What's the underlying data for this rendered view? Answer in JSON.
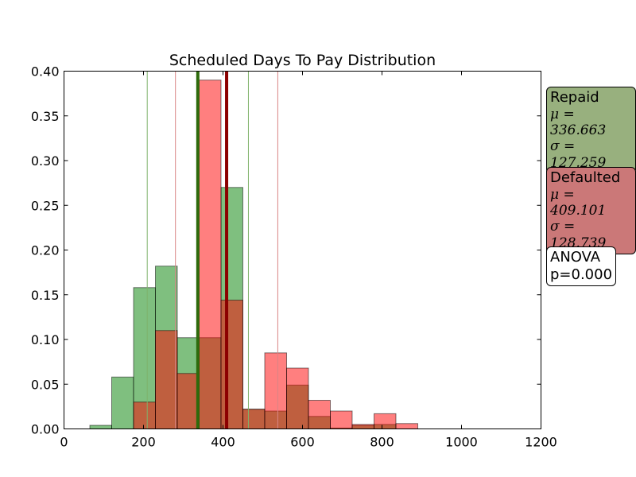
{
  "chart_data": {
    "type": "histogram",
    "title": "Scheduled Days To Pay Distribution",
    "xlim": [
      0,
      1200
    ],
    "ylim": [
      0,
      0.4
    ],
    "x_ticks": [
      0,
      200,
      400,
      600,
      800,
      1000,
      1200
    ],
    "y_ticks": [
      0.0,
      0.05,
      0.1,
      0.15,
      0.2,
      0.25,
      0.3,
      0.35,
      0.4
    ],
    "x_tick_labels": [
      "0",
      "200",
      "400",
      "600",
      "800",
      "1000",
      "1200"
    ],
    "y_tick_labels": [
      "0.00",
      "0.05",
      "0.10",
      "0.15",
      "0.20",
      "0.25",
      "0.30",
      "0.35",
      "0.40"
    ],
    "series": [
      {
        "name": "Repaid",
        "color": "#008000",
        "bins": [
          {
            "x0": 65,
            "x1": 120,
            "y": 0.004
          },
          {
            "x0": 120,
            "x1": 175,
            "y": 0.058
          },
          {
            "x0": 175,
            "x1": 230,
            "y": 0.158
          },
          {
            "x0": 230,
            "x1": 285,
            "y": 0.182
          },
          {
            "x0": 285,
            "x1": 340,
            "y": 0.102
          },
          {
            "x0": 340,
            "x1": 395,
            "y": 0.102
          },
          {
            "x0": 395,
            "x1": 450,
            "y": 0.27
          },
          {
            "x0": 450,
            "x1": 505,
            "y": 0.022
          },
          {
            "x0": 505,
            "x1": 560,
            "y": 0.02
          },
          {
            "x0": 560,
            "x1": 615,
            "y": 0.049
          },
          {
            "x0": 615,
            "x1": 670,
            "y": 0.014
          },
          {
            "x0": 670,
            "x1": 725,
            "y": 0.001
          },
          {
            "x0": 725,
            "x1": 780,
            "y": 0.004
          },
          {
            "x0": 780,
            "x1": 835,
            "y": 0.005
          }
        ],
        "mean": 336.663,
        "std": 127.259
      },
      {
        "name": "Defaulted",
        "color": "#ff0000",
        "bins": [
          {
            "x0": 175,
            "x1": 230,
            "y": 0.03
          },
          {
            "x0": 230,
            "x1": 285,
            "y": 0.11
          },
          {
            "x0": 285,
            "x1": 340,
            "y": 0.062
          },
          {
            "x0": 340,
            "x1": 395,
            "y": 0.39
          },
          {
            "x0": 395,
            "x1": 450,
            "y": 0.144
          },
          {
            "x0": 450,
            "x1": 505,
            "y": 0.022
          },
          {
            "x0": 505,
            "x1": 560,
            "y": 0.085
          },
          {
            "x0": 560,
            "x1": 615,
            "y": 0.068
          },
          {
            "x0": 615,
            "x1": 670,
            "y": 0.032
          },
          {
            "x0": 670,
            "x1": 725,
            "y": 0.02
          },
          {
            "x0": 725,
            "x1": 780,
            "y": 0.005
          },
          {
            "x0": 780,
            "x1": 835,
            "y": 0.017
          },
          {
            "x0": 835,
            "x1": 890,
            "y": 0.006
          }
        ],
        "mean": 409.101,
        "std": 128.739
      }
    ],
    "annotations": [
      {
        "label": "Repaid",
        "mu_text": "μ = 336.663",
        "sigma_text": "σ = 127.259",
        "box_color": "#98b07e"
      },
      {
        "label": "Defaulted",
        "mu_text": "μ = 409.101",
        "sigma_text": "σ = 128.739",
        "box_color": "#cb7878"
      },
      {
        "label": "ANOVA",
        "text": "p=0.000",
        "box_color": "#ffffff"
      }
    ],
    "line_colors": {
      "repaid_mean": "#2e6b0c",
      "defaulted_mean": "#8b0000",
      "repaid_std": "#7fb26b",
      "defaulted_std": "#d98585"
    }
  }
}
